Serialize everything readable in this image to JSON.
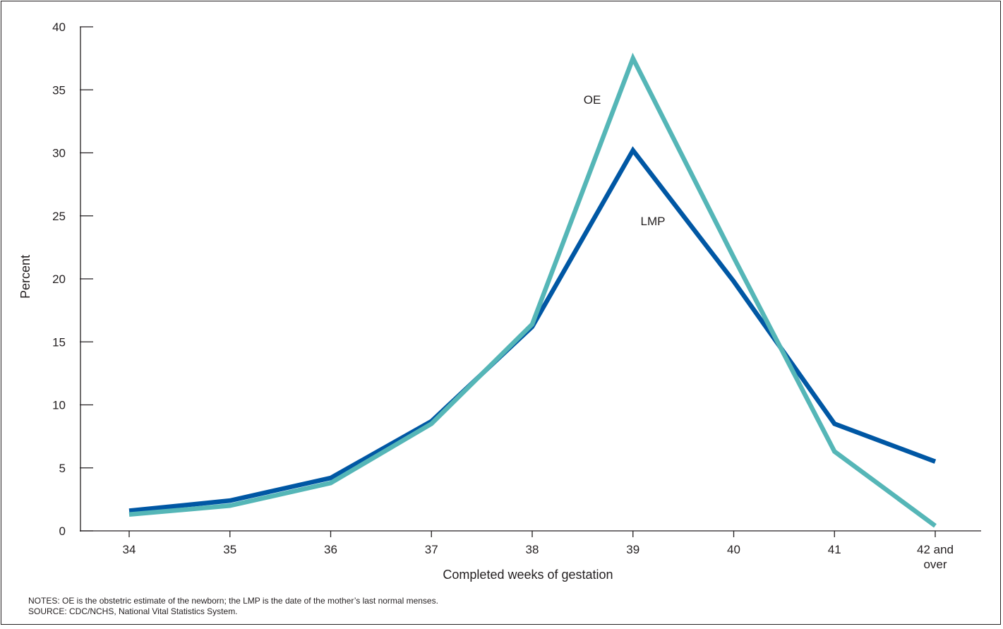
{
  "chart_data": {
    "type": "line",
    "title": "",
    "xlabel": "Completed weeks of gestation",
    "ylabel": "Percent",
    "ylim": [
      0,
      40
    ],
    "yticks": [
      0,
      5,
      10,
      15,
      20,
      25,
      30,
      35,
      40
    ],
    "grid": false,
    "legend": "inline labels",
    "categories": [
      [
        "34"
      ],
      [
        "35"
      ],
      [
        "36"
      ],
      [
        "37"
      ],
      [
        "38"
      ],
      [
        "39"
      ],
      [
        "40"
      ],
      [
        "41"
      ],
      [
        "42 and",
        "over"
      ]
    ],
    "series": [
      {
        "name": "LMP",
        "color": "#0057a4",
        "values": [
          1.6,
          2.4,
          4.2,
          8.7,
          16.2,
          30.2,
          19.8,
          8.5,
          5.5
        ]
      },
      {
        "name": "OE",
        "color": "#55b6b7",
        "values": [
          1.3,
          2.0,
          3.8,
          8.5,
          16.4,
          37.5,
          21.7,
          6.3,
          0.4
        ]
      }
    ]
  },
  "notes": "NOTES: OE is the obstetric estimate of the newborn; the LMP is the date of the mother’s last normal menses.",
  "source": "SOURCE: CDC/NCHS, National Vital Statistics System."
}
